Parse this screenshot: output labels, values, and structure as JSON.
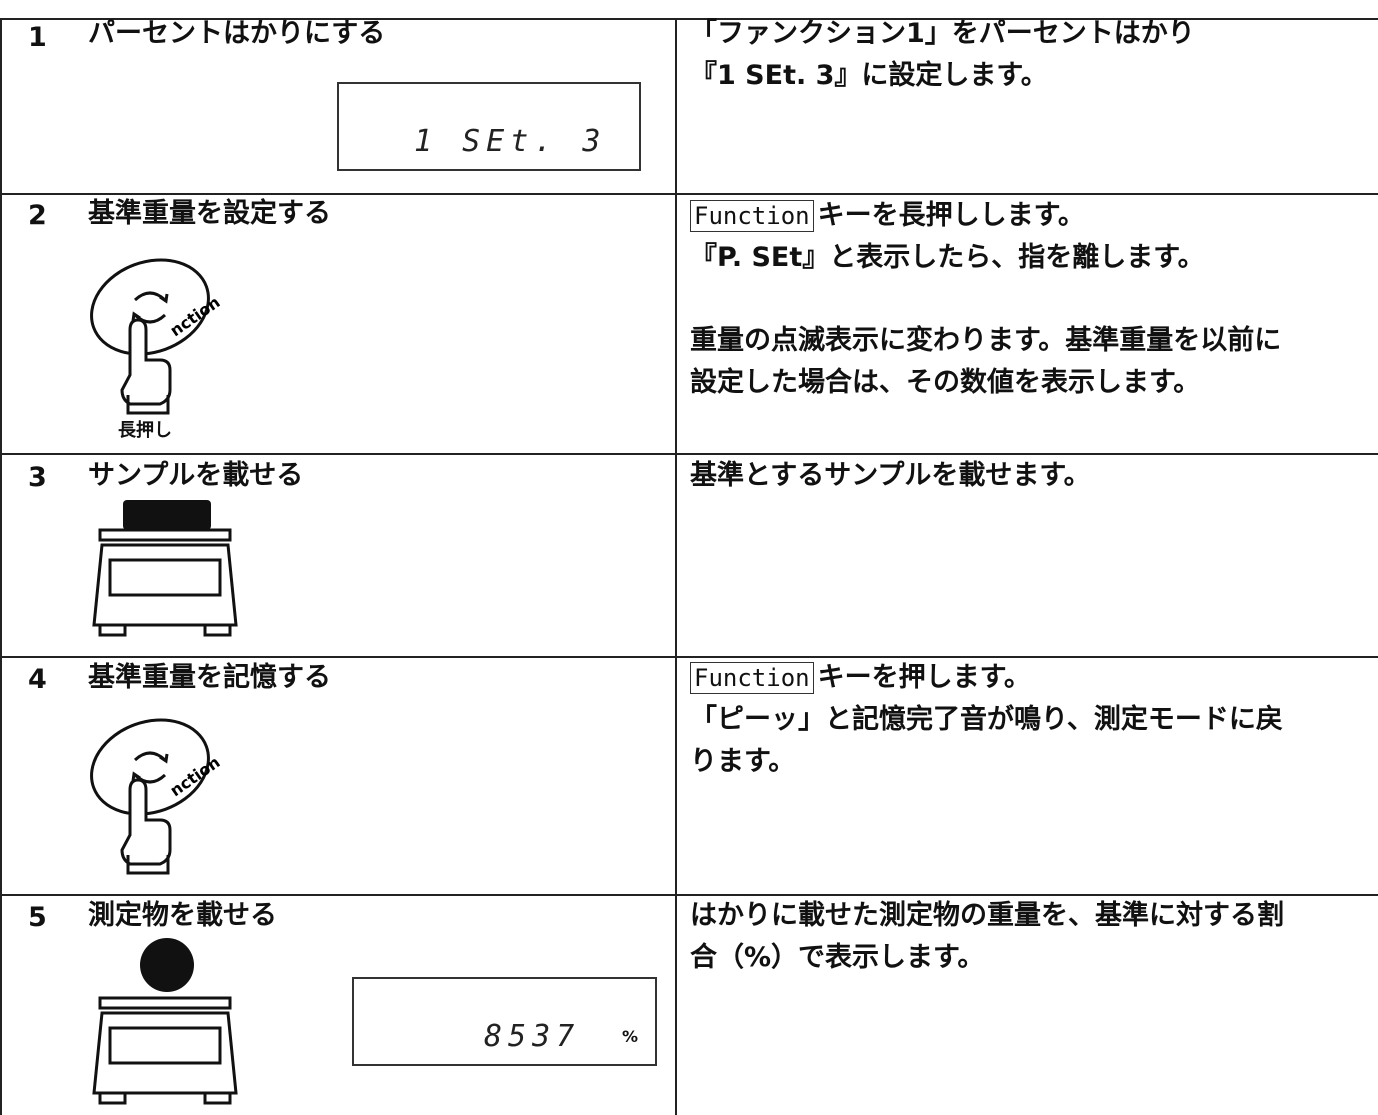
{
  "table": {
    "rows": [
      {
        "number": "1",
        "title": "パーセントはかりにする",
        "display": "1 SEt. 3",
        "description": [
          "「ファンクション1」をパーセントはかり",
          "『1 SEt. 3』に設定します。"
        ]
      },
      {
        "number": "2",
        "title": "基準重量を設定する",
        "icon_text": "nction",
        "icon_label": "長押し",
        "key": "Function",
        "description": [
          "キーを長押しします。",
          "『P. SEt』と表示したら、指を離します。",
          "重量の点滅表示に変わります。基準重量を以前に",
          "設定した場合は、その数値を表示します。"
        ]
      },
      {
        "number": "3",
        "title": "サンプルを載せる",
        "description": [
          "基準とするサンプルを載せます。"
        ]
      },
      {
        "number": "4",
        "title": "基準重量を記憶する",
        "icon_text": "nction",
        "key": "Function",
        "description": [
          "キーを押します。",
          "「ピーッ」と記憶完了音が鳴り、測定モードに戻",
          "ります。"
        ]
      },
      {
        "number": "5",
        "title": "測定物を載せる",
        "display": "8537",
        "unit": "%",
        "description": [
          "はかりに載せた測定物の重量を、基準に対する割",
          "合（%）で表示します。"
        ]
      }
    ]
  }
}
